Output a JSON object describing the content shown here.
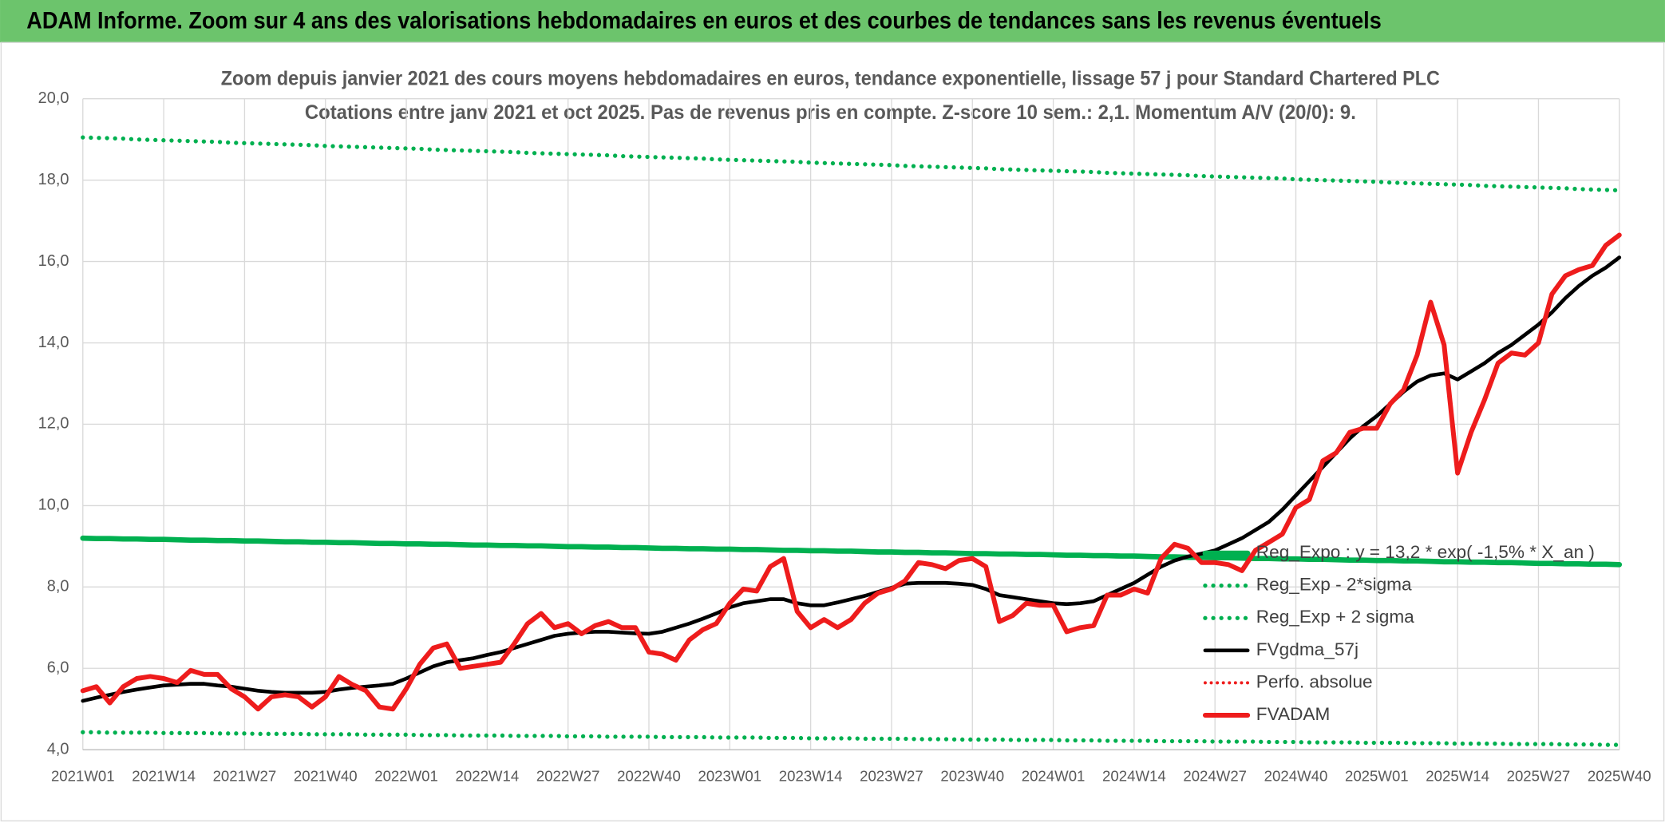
{
  "header": {
    "title": "ADAM Informe. Zoom sur 4 ans des valorisations hebdomadaires en euros et des courbes de tendances sans les revenus éventuels"
  },
  "chart_data": {
    "type": "line",
    "title": "Zoom depuis janvier 2021 des cours moyens hebdomadaires en euros, tendance exponentielle, lissage 57 j pour Standard Chartered PLC",
    "subtitle": "Cotations entre janv 2021 et oct 2025. Pas de revenus pris en compte. Z-score 10 sem.: 2,1. Momentum A/V (20/0): 9.",
    "categories": [
      "2021W01",
      null,
      null,
      null,
      null,
      null,
      "2021W14",
      null,
      null,
      null,
      null,
      null,
      "2021W27",
      null,
      null,
      null,
      null,
      null,
      "2021W40",
      null,
      null,
      null,
      null,
      null,
      "2022W01",
      null,
      null,
      null,
      null,
      null,
      "2022W14",
      null,
      null,
      null,
      null,
      null,
      "2022W27",
      null,
      null,
      null,
      null,
      null,
      "2022W40",
      null,
      null,
      null,
      null,
      null,
      "2023W01",
      null,
      null,
      null,
      null,
      null,
      "2023W14",
      null,
      null,
      null,
      null,
      null,
      "2023W27",
      null,
      null,
      null,
      null,
      null,
      "2023W40",
      null,
      null,
      null,
      null,
      null,
      "2024W01",
      null,
      null,
      null,
      null,
      null,
      "2024W14",
      null,
      null,
      null,
      null,
      null,
      "2024W27",
      null,
      null,
      null,
      null,
      null,
      "2024W40",
      null,
      null,
      null,
      null,
      null,
      "2025W01",
      null,
      null,
      null,
      null,
      null,
      "2025W14",
      null,
      null,
      null,
      null,
      null,
      "2025W27",
      null,
      null,
      null,
      null,
      null,
      "2025W40"
    ],
    "series": [
      {
        "name": "Reg_Expo : y = 13,2 * exp( -1,5% * X_an )",
        "color": "#00b050",
        "style": "solid",
        "width": 5,
        "values": [
          9.2,
          9.19,
          9.19,
          9.18,
          9.18,
          9.17,
          9.17,
          9.16,
          9.15,
          9.15,
          9.14,
          9.14,
          9.13,
          9.13,
          9.12,
          9.11,
          9.11,
          9.1,
          9.1,
          9.09,
          9.09,
          9.08,
          9.07,
          9.07,
          9.06,
          9.06,
          9.05,
          9.05,
          9.04,
          9.03,
          9.03,
          9.02,
          9.02,
          9.01,
          9.01,
          9.0,
          8.99,
          8.99,
          8.98,
          8.98,
          8.97,
          8.97,
          8.96,
          8.95,
          8.95,
          8.94,
          8.94,
          8.93,
          8.93,
          8.92,
          8.92,
          8.91,
          8.9,
          8.9,
          8.89,
          8.89,
          8.88,
          8.88,
          8.87,
          8.86,
          8.86,
          8.85,
          8.85,
          8.84,
          8.84,
          8.83,
          8.82,
          8.82,
          8.81,
          8.81,
          8.8,
          8.8,
          8.79,
          8.78,
          8.78,
          8.77,
          8.77,
          8.76,
          8.76,
          8.75,
          8.74,
          8.74,
          8.73,
          8.73,
          8.72,
          8.72,
          8.71,
          8.7,
          8.7,
          8.69,
          8.69,
          8.68,
          8.68,
          8.67,
          8.66,
          8.66,
          8.65,
          8.65,
          8.64,
          8.64,
          8.63,
          8.62,
          8.62,
          8.61,
          8.61,
          8.6,
          8.6,
          8.59,
          8.58,
          8.58,
          8.57,
          8.57,
          8.56,
          8.56,
          8.55
        ]
      },
      {
        "name": "Reg_Exp - 2*sigma",
        "color": "#00b050",
        "style": "dotted",
        "width": 4,
        "values": [
          4.43,
          4.43,
          4.42,
          4.42,
          4.42,
          4.42,
          4.41,
          4.41,
          4.41,
          4.41,
          4.4,
          4.4,
          4.4,
          4.39,
          4.39,
          4.39,
          4.39,
          4.38,
          4.38,
          4.38,
          4.38,
          4.37,
          4.37,
          4.37,
          4.37,
          4.36,
          4.36,
          4.36,
          4.35,
          4.35,
          4.35,
          4.35,
          4.34,
          4.34,
          4.34,
          4.34,
          4.33,
          4.33,
          4.33,
          4.32,
          4.32,
          4.32,
          4.32,
          4.31,
          4.31,
          4.31,
          4.31,
          4.3,
          4.3,
          4.3,
          4.3,
          4.29,
          4.29,
          4.29,
          4.28,
          4.28,
          4.28,
          4.28,
          4.27,
          4.27,
          4.27,
          4.27,
          4.26,
          4.26,
          4.26,
          4.25,
          4.25,
          4.25,
          4.25,
          4.24,
          4.24,
          4.24,
          4.24,
          4.23,
          4.23,
          4.23,
          4.22,
          4.22,
          4.22,
          4.22,
          4.21,
          4.21,
          4.21,
          4.21,
          4.2,
          4.2,
          4.2,
          4.2,
          4.19,
          4.19,
          4.19,
          4.18,
          4.18,
          4.18,
          4.18,
          4.17,
          4.17,
          4.17,
          4.17,
          4.16,
          4.16,
          4.16,
          4.15,
          4.15,
          4.15,
          4.15,
          4.14,
          4.14,
          4.14,
          4.14,
          4.13,
          4.13,
          4.13,
          4.12,
          4.12
        ]
      },
      {
        "name": "Reg_Exp + 2 sigma",
        "color": "#00b050",
        "style": "dotted",
        "width": 4,
        "values": [
          19.05,
          19.04,
          19.03,
          19.02,
          19.0,
          18.99,
          18.98,
          18.97,
          18.96,
          18.95,
          18.94,
          18.92,
          18.91,
          18.9,
          18.89,
          18.88,
          18.87,
          18.86,
          18.84,
          18.83,
          18.82,
          18.81,
          18.8,
          18.79,
          18.78,
          18.77,
          18.75,
          18.74,
          18.73,
          18.72,
          18.71,
          18.7,
          18.69,
          18.67,
          18.66,
          18.65,
          18.64,
          18.63,
          18.62,
          18.61,
          18.59,
          18.58,
          18.57,
          18.56,
          18.55,
          18.54,
          18.53,
          18.51,
          18.5,
          18.49,
          18.48,
          18.47,
          18.46,
          18.45,
          18.43,
          18.42,
          18.41,
          18.4,
          18.39,
          18.38,
          18.37,
          18.35,
          18.34,
          18.33,
          18.32,
          18.31,
          18.3,
          18.29,
          18.27,
          18.26,
          18.25,
          18.24,
          18.23,
          18.22,
          18.21,
          18.2,
          18.18,
          18.17,
          18.16,
          18.15,
          18.14,
          18.13,
          18.12,
          18.1,
          18.09,
          18.08,
          18.07,
          18.06,
          18.05,
          18.04,
          18.02,
          18.01,
          18.0,
          17.99,
          17.98,
          17.97,
          17.96,
          17.94,
          17.93,
          17.92,
          17.91,
          17.9,
          17.89,
          17.88,
          17.86,
          17.85,
          17.84,
          17.83,
          17.82,
          17.81,
          17.8,
          17.78,
          17.77,
          17.76,
          17.75
        ]
      },
      {
        "name": "FVgdma_57j",
        "color": "#000000",
        "style": "solid",
        "width": 3.5,
        "values": [
          5.2,
          5.28,
          5.35,
          5.42,
          5.48,
          5.53,
          5.58,
          5.6,
          5.62,
          5.62,
          5.58,
          5.55,
          5.5,
          5.45,
          5.42,
          5.4,
          5.4,
          5.4,
          5.42,
          5.48,
          5.52,
          5.55,
          5.58,
          5.62,
          5.75,
          5.9,
          6.05,
          6.15,
          6.2,
          6.25,
          6.33,
          6.4,
          6.5,
          6.6,
          6.7,
          6.8,
          6.85,
          6.88,
          6.9,
          6.9,
          6.88,
          6.86,
          6.85,
          6.9,
          7.0,
          7.1,
          7.22,
          7.35,
          7.5,
          7.6,
          7.65,
          7.7,
          7.7,
          7.6,
          7.55,
          7.55,
          7.62,
          7.7,
          7.78,
          7.88,
          7.98,
          8.08,
          8.1,
          8.1,
          8.1,
          8.08,
          8.05,
          7.95,
          7.8,
          7.75,
          7.7,
          7.65,
          7.6,
          7.58,
          7.6,
          7.65,
          7.8,
          7.95,
          8.1,
          8.3,
          8.5,
          8.65,
          8.75,
          8.82,
          8.9,
          9.05,
          9.2,
          9.4,
          9.6,
          9.9,
          10.25,
          10.6,
          10.95,
          11.3,
          11.65,
          11.95,
          12.2,
          12.5,
          12.8,
          13.05,
          13.2,
          13.25,
          13.1,
          13.3,
          13.5,
          13.75,
          13.95,
          14.2,
          14.45,
          14.75,
          15.1,
          15.4,
          15.65,
          15.85,
          16.1
        ]
      },
      {
        "name": "FVADAM",
        "color": "#ee1c1c",
        "style": "solid",
        "width": 4.5,
        "values": [
          5.45,
          5.55,
          5.15,
          5.55,
          5.75,
          5.8,
          5.75,
          5.65,
          5.95,
          5.85,
          5.85,
          5.5,
          5.3,
          5.0,
          5.3,
          5.35,
          5.3,
          5.05,
          5.3,
          5.8,
          5.6,
          5.45,
          5.05,
          5.0,
          5.5,
          6.1,
          6.5,
          6.6,
          6.0,
          6.05,
          6.1,
          6.15,
          6.6,
          7.1,
          7.35,
          7.0,
          7.1,
          6.85,
          7.05,
          7.15,
          7.0,
          7.0,
          6.4,
          6.35,
          6.2,
          6.7,
          6.95,
          7.1,
          7.6,
          7.95,
          7.9,
          8.5,
          8.7,
          7.4,
          7.0,
          7.2,
          7.0,
          7.2,
          7.6,
          7.85,
          7.95,
          8.15,
          8.6,
          8.55,
          8.45,
          8.65,
          8.7,
          8.5,
          7.15,
          7.3,
          7.6,
          7.55,
          7.55,
          6.9,
          7.0,
          7.05,
          7.8,
          7.8,
          7.95,
          7.85,
          8.7,
          9.05,
          8.95,
          8.6,
          8.6,
          8.55,
          8.4,
          8.9,
          9.1,
          9.3,
          9.95,
          10.15,
          11.1,
          11.3,
          11.8,
          11.9,
          11.9,
          12.5,
          12.85,
          13.7,
          15.0,
          13.95,
          10.8,
          11.8,
          12.6,
          13.5,
          13.75,
          13.7,
          14.0,
          15.2,
          15.65,
          15.8,
          15.9,
          16.4,
          16.65
        ]
      }
    ],
    "legend_extra": [
      {
        "name": "Perfo. absolue",
        "color": "#ee1c1c",
        "style": "dotted",
        "width": 3
      }
    ],
    "ylim": [
      4,
      20
    ],
    "yticks": [
      {
        "value": 4,
        "label": "4,0"
      },
      {
        "value": 6,
        "label": "6,0"
      },
      {
        "value": 8,
        "label": "8,0"
      },
      {
        "value": 10,
        "label": "10,0"
      },
      {
        "value": 12,
        "label": "12,0"
      },
      {
        "value": 14,
        "label": "14,0"
      },
      {
        "value": 16,
        "label": "16,0"
      },
      {
        "value": 18,
        "label": "18,0"
      },
      {
        "value": 20,
        "label": "20,0"
      }
    ],
    "grid": true,
    "legend_position": "right"
  }
}
